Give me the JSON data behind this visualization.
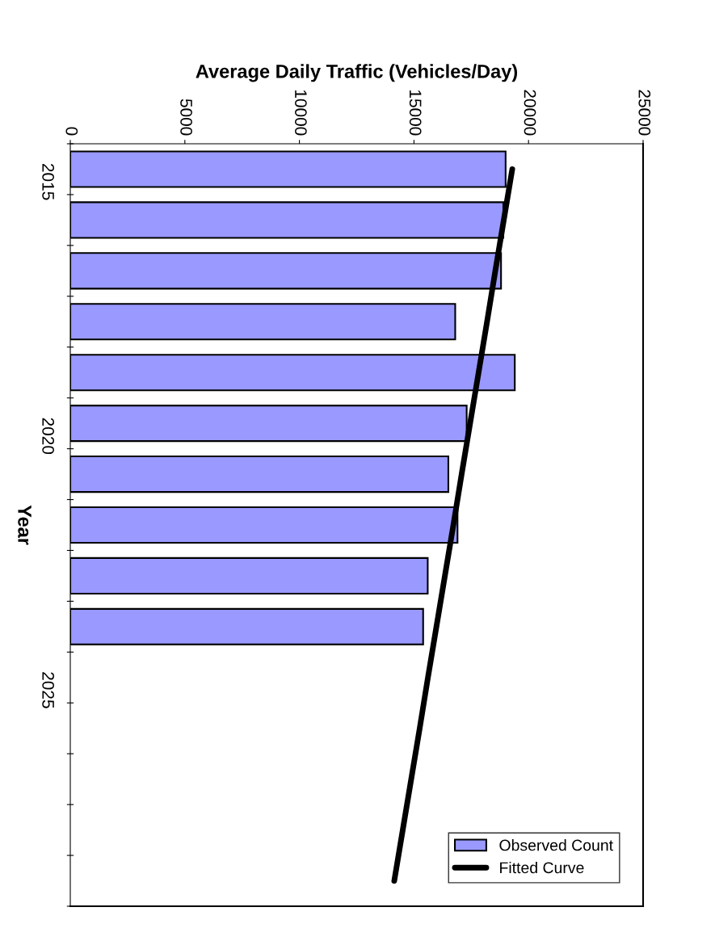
{
  "chart_data": {
    "type": "bar",
    "orientation": "horizontal",
    "xlabel": "Average Daily Traffic (Vehicles/Day)",
    "ylabel": "Year",
    "categories": [
      "2015",
      null,
      null,
      null,
      null,
      "2020",
      null,
      null,
      null,
      null,
      "2025",
      null,
      null,
      null,
      null
    ],
    "xlim": [
      0,
      25000
    ],
    "xticks": [
      0,
      5000,
      10000,
      15000,
      20000,
      25000
    ],
    "grid": false,
    "legend": "bottom right",
    "series": [
      {
        "name": "Observed Count",
        "color": "#9999ff",
        "values": [
          19000,
          18900,
          18800,
          16800,
          19400,
          17300,
          16500,
          16900,
          15600,
          15400,
          null,
          null,
          null,
          null,
          null
        ]
      },
      {
        "name": "Fitted Curve",
        "type": "line",
        "color": "#000000",
        "values": [
          19290,
          18920,
          18550,
          18190,
          17820,
          17450,
          17080,
          16720,
          16350,
          15980,
          15610,
          15250,
          14880,
          14510,
          14140
        ]
      }
    ]
  }
}
